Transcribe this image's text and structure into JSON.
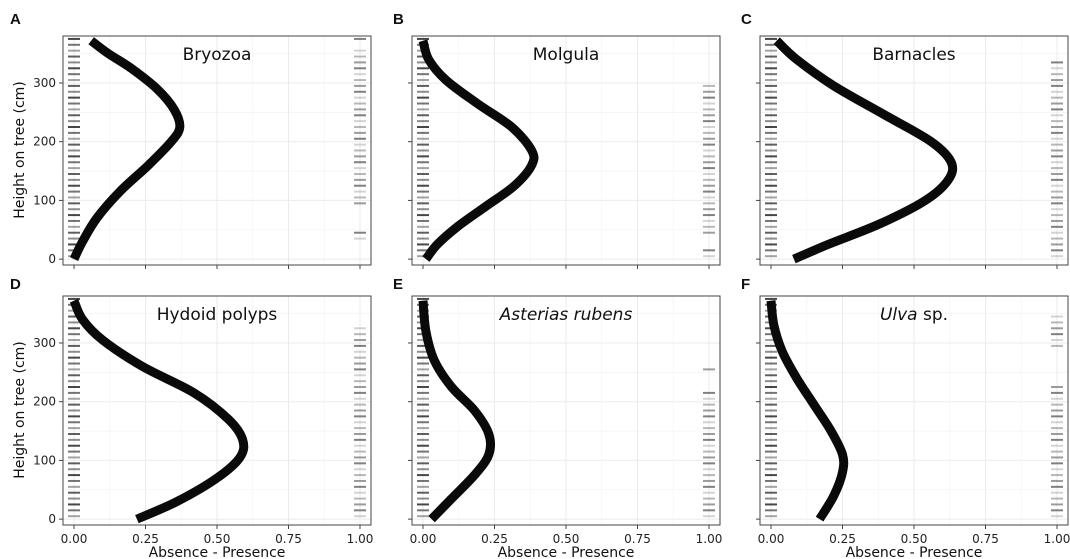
{
  "chart_data": [
    {
      "type": "line",
      "panel": "A",
      "title": "Bryozoa",
      "title_italic": "",
      "title_rest": "",
      "ylabel": "Height on tree (cm)",
      "xlabel": "",
      "xlim": [
        0,
        1
      ],
      "ylim": [
        -10,
        380
      ],
      "x_ticks": [
        0,
        0.25,
        0.5,
        0.75,
        1
      ],
      "y_ticks": [
        0,
        100,
        200,
        300
      ],
      "fit_curve": {
        "x": [
          0.0,
          0.03,
          0.08,
          0.16,
          0.26,
          0.34,
          0.37,
          0.35,
          0.29,
          0.2,
          0.12,
          0.06
        ],
        "y": [
          0,
          30,
          70,
          115,
          160,
          200,
          225,
          255,
          290,
          325,
          350,
          372
        ]
      },
      "absence_heights": [
        5,
        15,
        25,
        35,
        45,
        55,
        65,
        75,
        85,
        95,
        105,
        115,
        125,
        135,
        145,
        155,
        165,
        175,
        185,
        195,
        205,
        215,
        225,
        235,
        245,
        255,
        265,
        275,
        285,
        295,
        305,
        315,
        325,
        335,
        345,
        355,
        365,
        375
      ],
      "presence_heights": [
        35,
        45,
        95,
        105,
        115,
        125,
        135,
        145,
        155,
        165,
        175,
        185,
        195,
        205,
        215,
        225,
        235,
        245,
        255,
        265,
        275,
        285,
        295,
        305,
        315,
        325,
        335,
        345,
        355,
        375
      ],
      "grid": true
    },
    {
      "type": "line",
      "panel": "B",
      "title": "Molgula",
      "title_italic": "",
      "title_rest": "",
      "ylabel": "",
      "xlabel": "",
      "xlim": [
        0,
        1
      ],
      "ylim": [
        -10,
        380
      ],
      "x_ticks": [
        0,
        0.25,
        0.5,
        0.75,
        1
      ],
      "y_ticks": [
        0,
        100,
        200,
        300
      ],
      "fit_curve": {
        "x": [
          0.01,
          0.05,
          0.12,
          0.22,
          0.32,
          0.38,
          0.38,
          0.31,
          0.19,
          0.08,
          0.02,
          0.0
        ],
        "y": [
          0,
          25,
          55,
          90,
          125,
          160,
          185,
          225,
          265,
          305,
          340,
          372
        ]
      },
      "absence_heights": [
        5,
        15,
        25,
        35,
        45,
        55,
        65,
        75,
        85,
        95,
        105,
        115,
        125,
        135,
        145,
        155,
        165,
        175,
        185,
        195,
        205,
        215,
        225,
        235,
        245,
        255,
        265,
        275,
        285,
        295,
        305,
        315,
        325,
        335,
        345,
        355,
        365,
        375
      ],
      "presence_heights": [
        5,
        15,
        45,
        55,
        65,
        75,
        85,
        95,
        105,
        115,
        125,
        135,
        145,
        155,
        165,
        175,
        185,
        195,
        205,
        215,
        225,
        235,
        245,
        255,
        265,
        275,
        285,
        295
      ],
      "grid": true
    },
    {
      "type": "line",
      "panel": "C",
      "title": "Barnacles",
      "title_italic": "",
      "title_rest": "",
      "ylabel": "",
      "xlabel": "",
      "xlim": [
        0,
        1
      ],
      "ylim": [
        -10,
        380
      ],
      "x_ticks": [
        0,
        0.25,
        0.5,
        0.75,
        1
      ],
      "y_ticks": [
        0,
        100,
        200,
        300
      ],
      "fit_curve": {
        "x": [
          0.08,
          0.2,
          0.38,
          0.54,
          0.62,
          0.63,
          0.56,
          0.4,
          0.22,
          0.09,
          0.02
        ],
        "y": [
          0,
          25,
          60,
          100,
          135,
          165,
          200,
          245,
          295,
          340,
          372
        ]
      },
      "absence_heights": [
        5,
        15,
        25,
        35,
        45,
        55,
        65,
        75,
        85,
        95,
        105,
        115,
        125,
        135,
        145,
        155,
        165,
        175,
        185,
        195,
        205,
        215,
        225,
        235,
        245,
        255,
        265,
        275,
        285,
        295,
        305,
        315,
        325,
        335,
        345,
        355,
        365,
        375
      ],
      "presence_heights": [
        5,
        15,
        25,
        35,
        45,
        55,
        65,
        75,
        85,
        95,
        105,
        115,
        125,
        135,
        145,
        155,
        165,
        175,
        185,
        195,
        205,
        215,
        225,
        235,
        245,
        255,
        265,
        275,
        285,
        295,
        305,
        315,
        325,
        335
      ],
      "grid": true
    },
    {
      "type": "line",
      "panel": "D",
      "title": "Hydoid polyps",
      "title_italic": "",
      "title_rest": "",
      "ylabel": "Height on tree (cm)",
      "xlabel": "Absence - Presence",
      "xlim": [
        0,
        1
      ],
      "ylim": [
        -10,
        380
      ],
      "x_ticks": [
        0,
        0.25,
        0.5,
        0.75,
        1
      ],
      "x_tick_labels": [
        "0.00",
        "0.25",
        "0.50",
        "0.75",
        "1.00"
      ],
      "y_ticks": [
        0,
        100,
        200,
        300
      ],
      "fit_curve": {
        "x": [
          0.22,
          0.36,
          0.5,
          0.58,
          0.59,
          0.54,
          0.42,
          0.24,
          0.1,
          0.03,
          0.0
        ],
        "y": [
          0,
          30,
          70,
          105,
          135,
          170,
          215,
          260,
          305,
          340,
          372
        ]
      },
      "absence_heights": [
        5,
        15,
        25,
        35,
        45,
        55,
        65,
        75,
        85,
        95,
        105,
        115,
        125,
        135,
        145,
        155,
        165,
        175,
        185,
        195,
        205,
        215,
        225,
        235,
        245,
        255,
        265,
        275,
        285,
        295,
        305,
        315,
        325,
        335,
        345,
        355,
        365,
        375
      ],
      "presence_heights": [
        5,
        15,
        25,
        35,
        45,
        55,
        65,
        75,
        85,
        95,
        105,
        115,
        125,
        135,
        145,
        155,
        165,
        175,
        185,
        195,
        205,
        215,
        225,
        235,
        245,
        255,
        265,
        275,
        285,
        295,
        305,
        315,
        325
      ],
      "grid": true
    },
    {
      "type": "line",
      "panel": "E",
      "title": "",
      "title_italic": "Asterias rubens",
      "title_rest": "",
      "ylabel": "",
      "xlabel": "Absence - Presence",
      "xlim": [
        0,
        1
      ],
      "ylim": [
        -10,
        380
      ],
      "x_ticks": [
        0,
        0.25,
        0.5,
        0.75,
        1
      ],
      "x_tick_labels": [
        "0.00",
        "0.25",
        "0.50",
        "0.75",
        "1.00"
      ],
      "y_ticks": [
        0,
        100,
        200,
        300
      ],
      "fit_curve": {
        "x": [
          0.03,
          0.1,
          0.18,
          0.23,
          0.23,
          0.18,
          0.1,
          0.04,
          0.01,
          0.0
        ],
        "y": [
          0,
          35,
          75,
          110,
          145,
          185,
          225,
          270,
          320,
          372
        ]
      },
      "absence_heights": [
        5,
        15,
        25,
        35,
        45,
        55,
        65,
        75,
        85,
        95,
        105,
        115,
        125,
        135,
        145,
        155,
        165,
        175,
        185,
        195,
        205,
        215,
        225,
        235,
        245,
        255,
        265,
        275,
        285,
        295,
        305,
        315,
        325,
        335,
        345,
        355,
        365,
        375
      ],
      "presence_heights": [
        5,
        15,
        25,
        35,
        45,
        55,
        65,
        75,
        85,
        95,
        105,
        115,
        125,
        135,
        145,
        155,
        165,
        175,
        185,
        195,
        205,
        215,
        255
      ],
      "grid": true
    },
    {
      "type": "line",
      "panel": "F",
      "title": "",
      "title_italic": "Ulva",
      "title_rest": " sp.",
      "ylabel": "",
      "xlabel": "Absence - Presence",
      "xlim": [
        0,
        1
      ],
      "ylim": [
        -10,
        380
      ],
      "x_ticks": [
        0,
        0.25,
        0.5,
        0.75,
        1
      ],
      "x_tick_labels": [
        "0.00",
        "0.25",
        "0.50",
        "0.75",
        "1.00"
      ],
      "y_ticks": [
        0,
        100,
        200,
        300
      ],
      "fit_curve": {
        "x": [
          0.17,
          0.22,
          0.25,
          0.25,
          0.21,
          0.15,
          0.09,
          0.04,
          0.01,
          0.0
        ],
        "y": [
          0,
          40,
          80,
          110,
          150,
          195,
          240,
          285,
          330,
          372
        ]
      },
      "absence_heights": [
        5,
        15,
        25,
        35,
        45,
        55,
        65,
        75,
        85,
        95,
        105,
        115,
        125,
        135,
        145,
        155,
        165,
        175,
        185,
        195,
        205,
        215,
        225,
        235,
        245,
        255,
        265,
        275,
        285,
        295,
        305,
        315,
        325,
        335,
        345,
        355,
        365,
        375
      ],
      "presence_heights": [
        5,
        15,
        25,
        35,
        45,
        55,
        65,
        75,
        85,
        95,
        105,
        115,
        125,
        135,
        145,
        155,
        165,
        175,
        185,
        195,
        205,
        215,
        225,
        295,
        305,
        315,
        325,
        335,
        345
      ],
      "grid": true
    }
  ]
}
